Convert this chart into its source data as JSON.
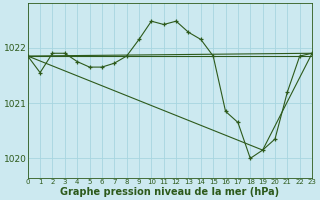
{
  "background_color": "#cce9f0",
  "grid_color": "#b0d8e2",
  "line_color": "#2d5a1b",
  "marker_color": "#2d5a1b",
  "ylabel_ticks": [
    1020,
    1021,
    1022
  ],
  "xlabel_ticks": [
    0,
    1,
    2,
    3,
    4,
    5,
    6,
    7,
    8,
    9,
    10,
    11,
    12,
    13,
    14,
    15,
    16,
    17,
    18,
    19,
    20,
    21,
    22,
    23
  ],
  "xlabel": "Graphe pression niveau de la mer (hPa)",
  "xlabel_fontsize": 7,
  "ytick_fontsize": 6.5,
  "xtick_fontsize": 5.0,
  "series1_x": [
    0,
    1,
    2,
    3,
    4,
    5,
    6,
    7,
    8,
    9,
    10,
    11,
    12,
    13,
    14,
    15,
    16,
    17,
    18,
    19,
    20,
    21,
    22,
    23
  ],
  "series1_y": [
    1021.85,
    1021.55,
    1021.9,
    1021.9,
    1021.75,
    1021.65,
    1021.65,
    1021.72,
    1021.85,
    1022.15,
    1022.48,
    1022.42,
    1022.48,
    1022.28,
    1022.15,
    1021.85,
    1020.85,
    1020.65,
    1020.0,
    1020.15,
    1020.35,
    1021.2,
    1021.85,
    1021.9
  ],
  "series2_x": [
    0,
    23
  ],
  "series2_y": [
    1021.85,
    1021.85
  ],
  "series3_x": [
    0,
    23
  ],
  "series3_y": [
    1021.85,
    1021.9
  ],
  "series4_x": [
    0,
    19,
    23
  ],
  "series4_y": [
    1021.85,
    1020.15,
    1021.9
  ],
  "ylim": [
    1019.65,
    1022.8
  ],
  "xlim": [
    0,
    23
  ]
}
